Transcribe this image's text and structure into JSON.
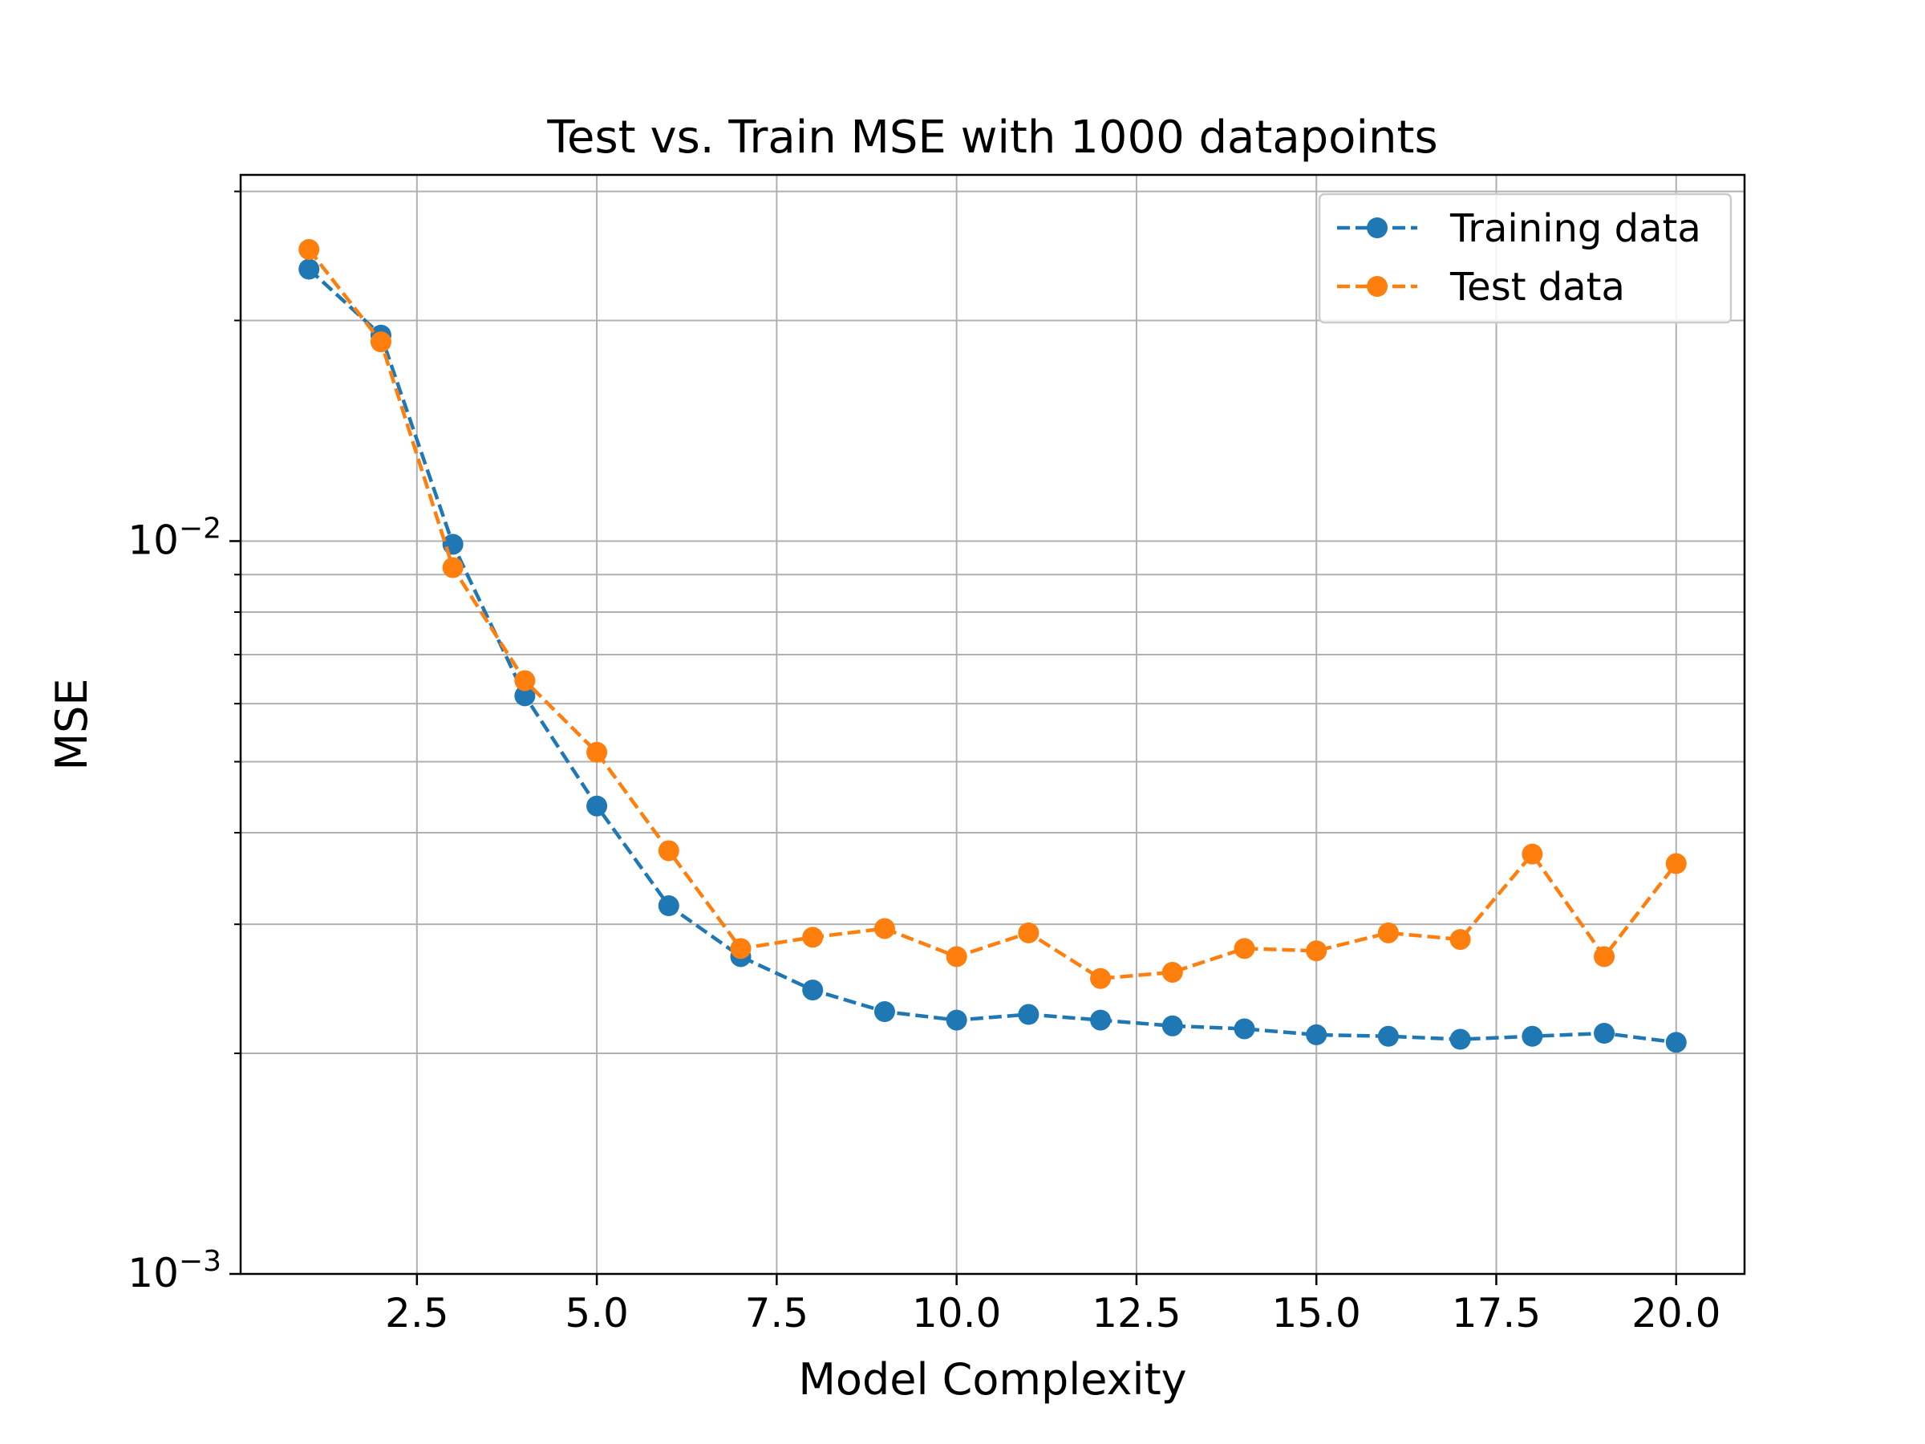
{
  "chart_data": {
    "type": "line",
    "title": "Test vs. Train MSE with 1000 datapoints",
    "xlabel": "Model Complexity",
    "ylabel": "MSE",
    "xlim": [
      0.05,
      20.95
    ],
    "ylim": [
      0.001,
      0.0316
    ],
    "yscale": "log",
    "grid": true,
    "legend_position": "top-right",
    "x": [
      1,
      2,
      3,
      4,
      5,
      6,
      7,
      8,
      9,
      10,
      11,
      12,
      13,
      14,
      15,
      16,
      17,
      18,
      19,
      20
    ],
    "xticks": [
      {
        "value": 2.5,
        "label": "2.5"
      },
      {
        "value": 5.0,
        "label": "5.0"
      },
      {
        "value": 7.5,
        "label": "7.5"
      },
      {
        "value": 10.0,
        "label": "10.0"
      },
      {
        "value": 12.5,
        "label": "12.5"
      },
      {
        "value": 15.0,
        "label": "15.0"
      },
      {
        "value": 17.5,
        "label": "17.5"
      },
      {
        "value": 20.0,
        "label": "20.0"
      }
    ],
    "yticks_major": [
      {
        "value": 0.01,
        "base": "10",
        "exp": "−2"
      },
      {
        "value": 0.001,
        "base": "10",
        "exp": "−3"
      }
    ],
    "yticks_minor": [
      0.002,
      0.003,
      0.004,
      0.005,
      0.006,
      0.007,
      0.008,
      0.009,
      0.02,
      0.03
    ],
    "series": [
      {
        "name": "Training data",
        "color": "#1f77b4",
        "linestyle": "dashed",
        "marker": "circle",
        "values": [
          0.0235,
          0.0191,
          0.0099,
          0.00615,
          0.00435,
          0.00318,
          0.00271,
          0.00244,
          0.00228,
          0.00222,
          0.00226,
          0.00222,
          0.00218,
          0.00216,
          0.00212,
          0.00211,
          0.00209,
          0.00211,
          0.00213,
          0.00207
        ]
      },
      {
        "name": "Test data",
        "color": "#ff7f0e",
        "linestyle": "dashed",
        "marker": "circle",
        "values": [
          0.025,
          0.0187,
          0.0092,
          0.00645,
          0.00515,
          0.00378,
          0.00278,
          0.00288,
          0.00296,
          0.00271,
          0.00292,
          0.00253,
          0.00258,
          0.00278,
          0.00276,
          0.00292,
          0.00286,
          0.00374,
          0.00271,
          0.00363
        ]
      }
    ]
  }
}
